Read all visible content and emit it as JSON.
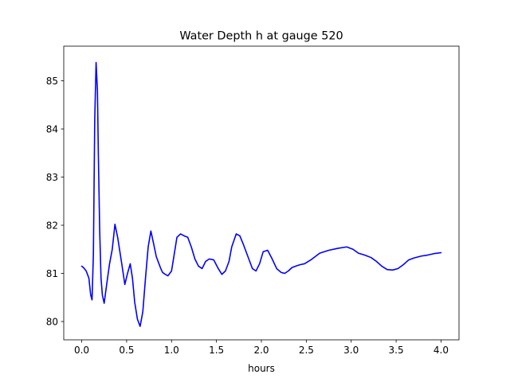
{
  "chart_data": {
    "type": "line",
    "title": "Water Depth h at gauge 520",
    "xlabel": "hours",
    "ylabel": "",
    "xlim": [
      -0.2,
      4.2
    ],
    "ylim": [
      79.62,
      85.72
    ],
    "x_ticks": [
      0.0,
      0.5,
      1.0,
      1.5,
      2.0,
      2.5,
      3.0,
      3.5,
      4.0
    ],
    "x_tick_labels": [
      "0.0",
      "0.5",
      "1.0",
      "1.5",
      "2.0",
      "2.5",
      "3.0",
      "3.5",
      "4.0"
    ],
    "y_ticks": [
      80,
      81,
      82,
      83,
      84,
      85
    ],
    "y_tick_labels": [
      "80",
      "81",
      "82",
      "83",
      "84",
      "85"
    ],
    "grid": false,
    "line_color": "#0000ff",
    "series": [
      {
        "x": [
          0.0,
          0.02,
          0.05,
          0.08,
          0.1,
          0.115,
          0.13,
          0.145,
          0.16,
          0.175,
          0.185,
          0.2,
          0.215,
          0.23,
          0.25,
          0.28,
          0.31,
          0.34,
          0.37,
          0.4,
          0.425,
          0.45,
          0.48,
          0.51,
          0.54,
          0.565,
          0.59,
          0.62,
          0.65,
          0.68,
          0.71,
          0.74,
          0.77,
          0.8,
          0.83,
          0.86,
          0.88,
          0.9,
          0.93,
          0.96,
          1.0,
          1.03,
          1.06,
          1.1,
          1.14,
          1.18,
          1.22,
          1.26,
          1.3,
          1.34,
          1.38,
          1.42,
          1.47,
          1.52,
          1.56,
          1.6,
          1.64,
          1.67,
          1.72,
          1.76,
          1.8,
          1.85,
          1.9,
          1.94,
          1.98,
          2.02,
          2.07,
          2.12,
          2.17,
          2.22,
          2.26,
          2.3,
          2.34,
          2.38,
          2.43,
          2.48,
          2.55,
          2.65,
          2.75,
          2.85,
          2.95,
          3.02,
          3.08,
          3.15,
          3.22,
          3.28,
          3.34,
          3.4,
          3.46,
          3.52,
          3.58,
          3.64,
          3.7,
          3.78,
          3.85,
          3.92,
          4.0
        ],
        "values": [
          81.15,
          81.12,
          81.05,
          80.9,
          80.55,
          80.45,
          81.4,
          84.2,
          85.38,
          84.8,
          83.5,
          81.9,
          80.9,
          80.55,
          80.38,
          80.8,
          81.2,
          81.5,
          82.02,
          81.75,
          81.45,
          81.15,
          80.77,
          81.0,
          81.2,
          80.9,
          80.4,
          80.05,
          79.9,
          80.2,
          80.9,
          81.55,
          81.88,
          81.62,
          81.35,
          81.2,
          81.1,
          81.02,
          80.98,
          80.95,
          81.05,
          81.4,
          81.75,
          81.82,
          81.78,
          81.75,
          81.55,
          81.3,
          81.15,
          81.1,
          81.25,
          81.3,
          81.28,
          81.1,
          80.98,
          81.05,
          81.25,
          81.55,
          81.82,
          81.78,
          81.6,
          81.35,
          81.1,
          81.05,
          81.2,
          81.45,
          81.48,
          81.3,
          81.1,
          81.02,
          81.0,
          81.05,
          81.12,
          81.15,
          81.18,
          81.2,
          81.28,
          81.42,
          81.48,
          81.52,
          81.55,
          81.5,
          81.42,
          81.38,
          81.33,
          81.25,
          81.15,
          81.08,
          81.07,
          81.1,
          81.18,
          81.28,
          81.32,
          81.36,
          81.38,
          81.41,
          81.43
        ]
      }
    ]
  }
}
